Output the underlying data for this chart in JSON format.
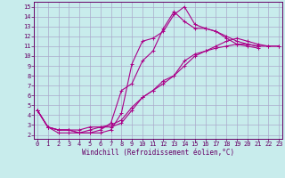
{
  "title": "",
  "xlabel": "Windchill (Refroidissement éolien,°C)",
  "bg_color": "#c8ecec",
  "grid_color": "#aaaacc",
  "line_color": "#aa0088",
  "x_ticks": [
    0,
    1,
    2,
    3,
    4,
    5,
    6,
    7,
    8,
    9,
    10,
    11,
    12,
    13,
    14,
    15,
    16,
    17,
    18,
    19,
    20,
    21,
    22,
    23
  ],
  "y_ticks": [
    2,
    3,
    4,
    5,
    6,
    7,
    8,
    9,
    10,
    11,
    12,
    13,
    14,
    15
  ],
  "xlim": [
    -0.3,
    23.3
  ],
  "ylim": [
    1.6,
    15.5
  ],
  "lines": [
    {
      "x": [
        0,
        1,
        2,
        3,
        4,
        5,
        6,
        7,
        8,
        9,
        10,
        11,
        12,
        13,
        14,
        15,
        16,
        17,
        18,
        19,
        20,
        21
      ],
      "y": [
        4.5,
        2.8,
        2.5,
        2.5,
        2.2,
        2.2,
        2.2,
        2.5,
        4.2,
        9.2,
        11.5,
        11.8,
        12.5,
        14.2,
        15.0,
        13.2,
        12.8,
        12.5,
        11.8,
        11.2,
        11.0,
        10.8
      ]
    },
    {
      "x": [
        0,
        1,
        2,
        3,
        4,
        5,
        6,
        7,
        8,
        9,
        10,
        11,
        12,
        13,
        14,
        15,
        16,
        17,
        18,
        19,
        20,
        21
      ],
      "y": [
        4.5,
        2.8,
        2.2,
        2.2,
        2.2,
        2.2,
        2.5,
        3.2,
        6.5,
        7.2,
        9.5,
        10.5,
        12.8,
        14.5,
        13.5,
        12.8,
        12.8,
        12.5,
        12.0,
        11.5,
        11.2,
        11.0
      ]
    },
    {
      "x": [
        0,
        1,
        2,
        3,
        4,
        5,
        6,
        7,
        8,
        9,
        10,
        11,
        12,
        13,
        14,
        15,
        16,
        17,
        18,
        19,
        20,
        21,
        22,
        23
      ],
      "y": [
        4.5,
        2.8,
        2.5,
        2.5,
        2.2,
        2.5,
        2.8,
        2.8,
        3.2,
        4.5,
        5.8,
        6.5,
        7.5,
        8.0,
        9.0,
        10.0,
        10.5,
        10.8,
        11.0,
        11.2,
        11.2,
        11.0,
        11.0,
        11.0
      ]
    },
    {
      "x": [
        0,
        1,
        2,
        3,
        4,
        5,
        6,
        7,
        8,
        9,
        10,
        11,
        12,
        13,
        14,
        15,
        16,
        17,
        18,
        19,
        20,
        21,
        22,
        23
      ],
      "y": [
        4.5,
        2.8,
        2.5,
        2.5,
        2.5,
        2.8,
        2.8,
        3.0,
        3.5,
        4.8,
        5.8,
        6.5,
        7.2,
        8.0,
        9.5,
        10.2,
        10.5,
        11.0,
        11.5,
        11.8,
        11.5,
        11.2,
        11.0,
        11.0
      ]
    }
  ],
  "marker": "+",
  "markersize": 3,
  "linewidth": 0.8,
  "tick_fontsize": 5,
  "xlabel_fontsize": 5.5,
  "spine_color": "#660066"
}
